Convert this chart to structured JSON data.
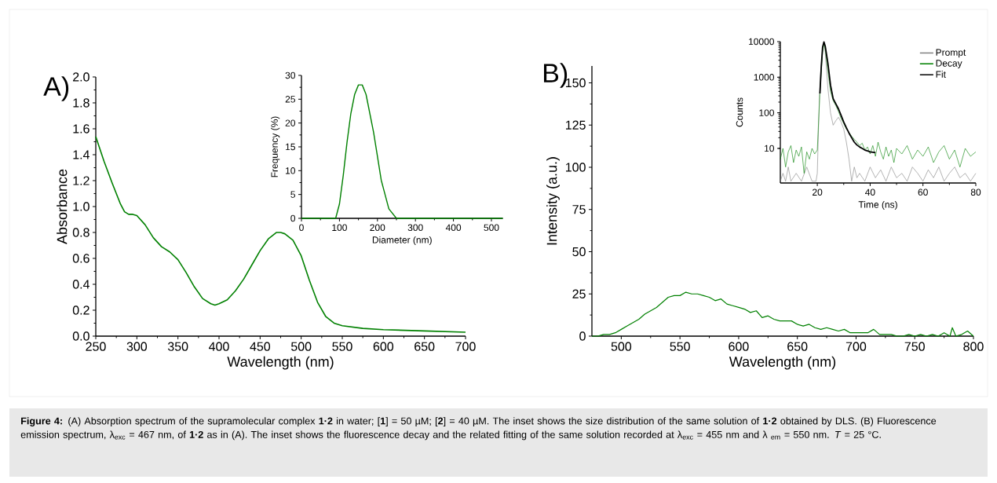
{
  "chart_data": [
    {
      "type": "line",
      "xlabel": "Wavelength (nm)",
      "ylabel": "Absorbance",
      "xlim": [
        250,
        700
      ],
      "ylim": [
        0,
        2
      ],
      "xticks": [
        250,
        300,
        350,
        400,
        450,
        500,
        550,
        600,
        650,
        700
      ],
      "yticks": [
        {
          "value": 0,
          "label": "0.0"
        },
        0.2,
        0.4,
        0.6,
        0.8,
        {
          "value": 1,
          "label": "1.0"
        },
        1.2,
        1.4,
        1.6,
        1.8,
        {
          "value": 2,
          "label": "2.0"
        }
      ],
      "annotations": [
        "A)",
        "**Figure 4:** (A) Absorption spectrum of the supramolecular complex **1·2** in water; [**1**] = 50 µM; [**2**] = 40 µM. The inset shows the size distribution of the same solution of **1·2** obtained by DLS. (B) Fluorescence emission spectrum, λ$_{exc}$ = 467 nm, of **1·2** as in (A). The inset shows the fluorescence decay and the related fitting of the same solution recorded at λ$_{exc}$ = 455 nm and λ $_{em}$ = 550 nm. *T* = 25 °C."
      ],
      "series": [
        {
          "color": "#008000",
          "x": [
            250,
            260,
            270,
            280,
            285,
            290,
            295,
            300,
            310,
            320,
            330,
            340,
            350,
            360,
            370,
            380,
            390,
            395,
            400,
            410,
            420,
            430,
            440,
            450,
            460,
            470,
            475,
            480,
            490,
            500,
            510,
            520,
            530,
            540,
            550,
            575,
            600,
            650,
            700
          ],
          "values": [
            1.54,
            1.35,
            1.18,
            1.02,
            0.96,
            0.94,
            0.94,
            0.93,
            0.86,
            0.76,
            0.69,
            0.65,
            0.59,
            0.49,
            0.38,
            0.29,
            0.25,
            0.24,
            0.25,
            0.28,
            0.35,
            0.44,
            0.55,
            0.66,
            0.75,
            0.8,
            0.8,
            0.79,
            0.74,
            0.62,
            0.43,
            0.26,
            0.15,
            0.1,
            0.08,
            0.06,
            0.05,
            0.04,
            0.03
          ]
        }
      ]
    },
    {
      "type": "line",
      "xlabel": "Diameter (nm)",
      "ylabel": "Frequency (%)",
      "xlim": [
        0,
        530
      ],
      "ylim": [
        0,
        30
      ],
      "xticks": [
        0,
        100,
        200,
        300,
        400,
        500
      ],
      "yticks": [
        0,
        5,
        10,
        15,
        20,
        25,
        30
      ],
      "series": [
        {
          "color": "#008000",
          "x": [
            0,
            80,
            90,
            100,
            110,
            120,
            130,
            140,
            150,
            155,
            160,
            170,
            180,
            190,
            200,
            210,
            220,
            230,
            240,
            250,
            270,
            530
          ],
          "values": [
            0,
            0,
            0,
            3,
            9,
            16,
            22,
            26,
            28,
            28,
            28,
            26,
            22,
            18,
            13,
            8,
            5,
            2,
            1,
            0,
            0,
            0
          ]
        }
      ]
    },
    {
      "type": "line",
      "xlabel": "Wavelength (nm)",
      "ylabel": "Intensity (a.u.)",
      "xlim": [
        475,
        800
      ],
      "ylim": [
        0,
        160
      ],
      "xticks": [
        500,
        550,
        600,
        650,
        700,
        750,
        800
      ],
      "yticks": [
        0,
        25,
        50,
        75,
        100,
        125,
        150
      ],
      "annotations": [
        "B)"
      ],
      "series": [
        {
          "color": "#008000",
          "x": [
            475,
            480,
            485,
            490,
            495,
            500,
            505,
            510,
            515,
            520,
            525,
            530,
            535,
            540,
            545,
            550,
            555,
            560,
            565,
            570,
            575,
            580,
            585,
            590,
            595,
            600,
            605,
            610,
            615,
            620,
            625,
            630,
            635,
            640,
            645,
            650,
            655,
            660,
            665,
            670,
            675,
            680,
            685,
            690,
            695,
            700,
            705,
            710,
            715,
            720,
            725,
            730,
            735,
            740,
            745,
            750,
            755,
            760,
            765,
            770,
            775,
            780,
            782,
            785,
            790,
            795,
            800
          ],
          "values": [
            0,
            0,
            1,
            1,
            2,
            4,
            6,
            8,
            10,
            13,
            15,
            17,
            20,
            23,
            24,
            24,
            26,
            25,
            25,
            24,
            23,
            21,
            22,
            19,
            18,
            17,
            16,
            14,
            15,
            11,
            12,
            10,
            9,
            9,
            9,
            7,
            6,
            7,
            5,
            4,
            5,
            4,
            3,
            4,
            2,
            2,
            2,
            2,
            4,
            1,
            1,
            1,
            0,
            0,
            1,
            0,
            1,
            0,
            1,
            0,
            2,
            0,
            5,
            0,
            1,
            3,
            0
          ]
        }
      ]
    },
    {
      "type": "line",
      "xlabel": "Time (ns)",
      "ylabel": "Counts",
      "log": "y",
      "legend": "top right",
      "xlim": [
        6,
        80
      ],
      "ylim": [
        1.07,
        10000
      ],
      "xticks": [
        20,
        40,
        60,
        80
      ],
      "yticks": [
        10,
        100,
        1000,
        10000
      ],
      "series": [
        {
          "name": "Prompt",
          "color": "#808080",
          "x": [
            6,
            7,
            8,
            9,
            10,
            12,
            14,
            16,
            18,
            19.5,
            20,
            20.5,
            21,
            22,
            22.5,
            23,
            24,
            25,
            26,
            27,
            28,
            29,
            30,
            31,
            32,
            33,
            34,
            35,
            36,
            38,
            40,
            42,
            44,
            46,
            48,
            50,
            52,
            54,
            56,
            58,
            60,
            62,
            64,
            66,
            68,
            70,
            72,
            74,
            76,
            78,
            80
          ],
          "values": [
            1.2,
            2,
            1.2,
            3,
            1.2,
            2,
            1.2,
            3,
            1.2,
            1.2,
            2,
            50,
            800,
            6000,
            9500,
            5000,
            500,
            100,
            45,
            60,
            75,
            55,
            35,
            15,
            5,
            1.2,
            3,
            1.5,
            2,
            1.2,
            3,
            1.5,
            2.5,
            1.2,
            3,
            1.5,
            2,
            1.2,
            3,
            2,
            1.2,
            2.5,
            1.5,
            3,
            1.2,
            2,
            3,
            1.5,
            2,
            1.2,
            2
          ]
        },
        {
          "name": "Decay",
          "color": "#008000",
          "x": [
            6,
            7,
            8,
            9,
            10,
            11,
            12,
            13,
            14,
            15,
            16,
            17,
            18,
            19,
            20,
            20.5,
            21,
            22,
            22.5,
            23,
            24,
            25,
            26,
            27,
            28,
            29,
            30,
            31,
            32,
            33,
            34,
            35,
            36,
            37,
            38,
            39,
            40,
            41,
            42,
            43,
            44,
            45,
            46,
            47,
            48,
            49,
            50,
            52,
            54,
            56,
            58,
            60,
            62,
            64,
            66,
            68,
            70,
            72,
            74,
            76,
            78,
            80
          ],
          "values": [
            5,
            10,
            3,
            8,
            12,
            4,
            9,
            6,
            11,
            2,
            8,
            5,
            10,
            7,
            9,
            60,
            400,
            5000,
            9000,
            6000,
            1500,
            400,
            220,
            160,
            110,
            70,
            50,
            35,
            28,
            22,
            18,
            15,
            12,
            14,
            9,
            11,
            7,
            12,
            6,
            15,
            8,
            5,
            11,
            6,
            9,
            4,
            10,
            7,
            12,
            5,
            9,
            6,
            11,
            4,
            8,
            12,
            5,
            9,
            3,
            10,
            6,
            8
          ]
        },
        {
          "name": "Fit",
          "color": "#000000",
          "x": [
            21,
            21.5,
            22,
            22.5,
            23,
            24,
            25,
            26,
            27,
            28,
            29,
            30,
            31,
            32,
            33,
            34,
            35,
            36,
            37,
            38,
            39,
            40,
            41,
            42
          ],
          "values": [
            350,
            2000,
            7000,
            9800,
            7500,
            2500,
            600,
            250,
            180,
            130,
            85,
            55,
            38,
            27,
            20,
            15,
            12.5,
            11,
            10,
            9,
            8.5,
            8,
            7.8,
            7.6
          ]
        }
      ]
    }
  ]
}
